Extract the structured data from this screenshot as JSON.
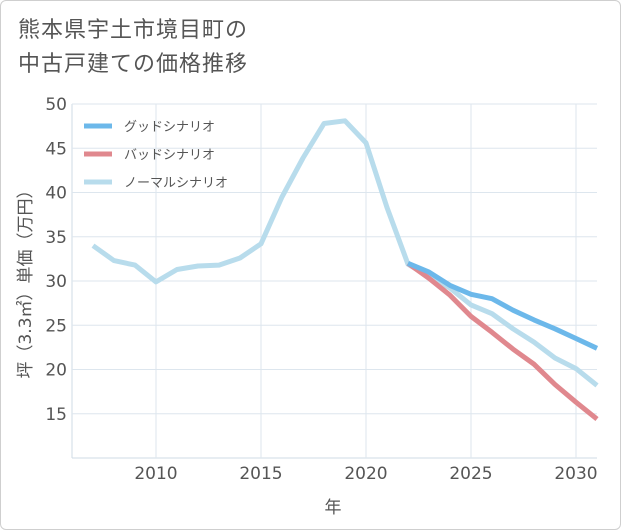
{
  "title_lines": [
    "熊本県宇土市境目町の",
    "中古戸建ての価格推移"
  ],
  "chart_data": {
    "type": "line",
    "title": "熊本県宇土市境目町の中古戸建ての価格推移",
    "xlabel": "年",
    "ylabel": "坪（3.3㎡）単価（万円）",
    "xlim": [
      2006,
      2031
    ],
    "ylim": [
      10,
      50
    ],
    "x_ticks": [
      2010,
      2015,
      2020,
      2025,
      2030
    ],
    "y_ticks": [
      15,
      20,
      25,
      30,
      35,
      40,
      45,
      50
    ],
    "grid": true,
    "legend_position": "top-left",
    "series": [
      {
        "name": "グッドシナリオ",
        "color": "#6cb8ea",
        "x": [
          2022,
          2023,
          2024,
          2025,
          2026,
          2027,
          2028,
          2029,
          2030,
          2031
        ],
        "values": [
          32.0,
          31.0,
          29.5,
          28.5,
          28.0,
          26.7,
          25.6,
          24.6,
          23.5,
          22.4
        ]
      },
      {
        "name": "バッドシナリオ",
        "color": "#e0888e",
        "x": [
          2022,
          2023,
          2024,
          2025,
          2026,
          2027,
          2028,
          2029,
          2030,
          2031
        ],
        "values": [
          32.0,
          30.3,
          28.4,
          26.0,
          24.2,
          22.3,
          20.6,
          18.3,
          16.3,
          14.4
        ]
      },
      {
        "name": "ノーマルシナリオ",
        "color": "#b8dcec",
        "x": [
          2007,
          2008,
          2009,
          2010,
          2011,
          2012,
          2013,
          2014,
          2015,
          2016,
          2017,
          2018,
          2019,
          2020,
          2021,
          2022,
          2023,
          2024,
          2025,
          2026,
          2027,
          2028,
          2029,
          2030,
          2031
        ],
        "values": [
          34.0,
          32.3,
          31.8,
          29.9,
          31.3,
          31.7,
          31.8,
          32.6,
          34.2,
          39.5,
          43.9,
          47.8,
          48.1,
          45.6,
          38.3,
          31.9,
          30.5,
          29.2,
          27.3,
          26.3,
          24.6,
          23.1,
          21.3,
          20.1,
          18.2
        ]
      }
    ]
  }
}
